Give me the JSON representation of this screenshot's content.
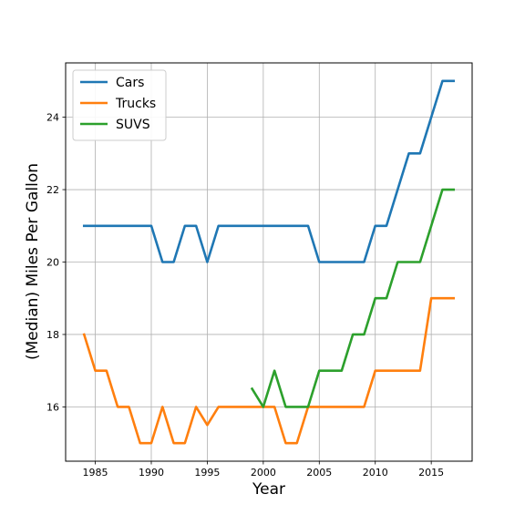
{
  "chart_data": {
    "type": "line",
    "title": "",
    "xlabel": "Year",
    "ylabel": "(Median) Miles Per Gallon",
    "xlim": [
      1982.35,
      2018.65
    ],
    "ylim": [
      14.5,
      25.5
    ],
    "xticks": [
      1985,
      1990,
      1995,
      2000,
      2005,
      2010,
      2015
    ],
    "yticks": [
      16,
      18,
      20,
      22,
      24
    ],
    "grid": true,
    "legend": "top-left",
    "series": [
      {
        "name": "Cars",
        "color": "#1f77b4",
        "x": [
          1984,
          1985,
          1986,
          1987,
          1988,
          1989,
          1990,
          1991,
          1992,
          1993,
          1994,
          1995,
          1996,
          1997,
          1998,
          1999,
          2000,
          2001,
          2002,
          2003,
          2004,
          2005,
          2006,
          2007,
          2008,
          2009,
          2010,
          2011,
          2012,
          2013,
          2014,
          2015,
          2016,
          2017
        ],
        "y": [
          21,
          21,
          21,
          21,
          21,
          21,
          21,
          20,
          20,
          21,
          21,
          20,
          21,
          21,
          21,
          21,
          21,
          21,
          21,
          21,
          21,
          20,
          20,
          20,
          20,
          20,
          21,
          21,
          22,
          23,
          23,
          24,
          25,
          25
        ]
      },
      {
        "name": "Trucks",
        "color": "#ff7f0e",
        "x": [
          1984,
          1985,
          1986,
          1987,
          1988,
          1989,
          1990,
          1991,
          1992,
          1993,
          1994,
          1995,
          1996,
          1997,
          1998,
          1999,
          2000,
          2001,
          2002,
          2003,
          2004,
          2005,
          2006,
          2007,
          2008,
          2009,
          2010,
          2011,
          2012,
          2013,
          2014,
          2015,
          2016,
          2017
        ],
        "y": [
          18,
          17,
          17,
          16,
          16,
          15,
          15,
          16,
          15,
          15,
          16,
          15.5,
          16,
          16,
          16,
          16,
          16,
          16,
          15,
          15,
          16,
          16,
          16,
          16,
          16,
          16,
          17,
          17,
          17,
          17,
          17,
          19,
          19,
          19
        ]
      },
      {
        "name": "SUVS",
        "color": "#2ca02c",
        "x": [
          1999,
          2000,
          2001,
          2002,
          2003,
          2004,
          2005,
          2006,
          2007,
          2008,
          2009,
          2010,
          2011,
          2012,
          2013,
          2014,
          2015,
          2016,
          2017
        ],
        "y": [
          16.5,
          16,
          17,
          16,
          16,
          16,
          17,
          17,
          17,
          18,
          18,
          19,
          19,
          20,
          20,
          20,
          21,
          22,
          22
        ]
      }
    ]
  }
}
